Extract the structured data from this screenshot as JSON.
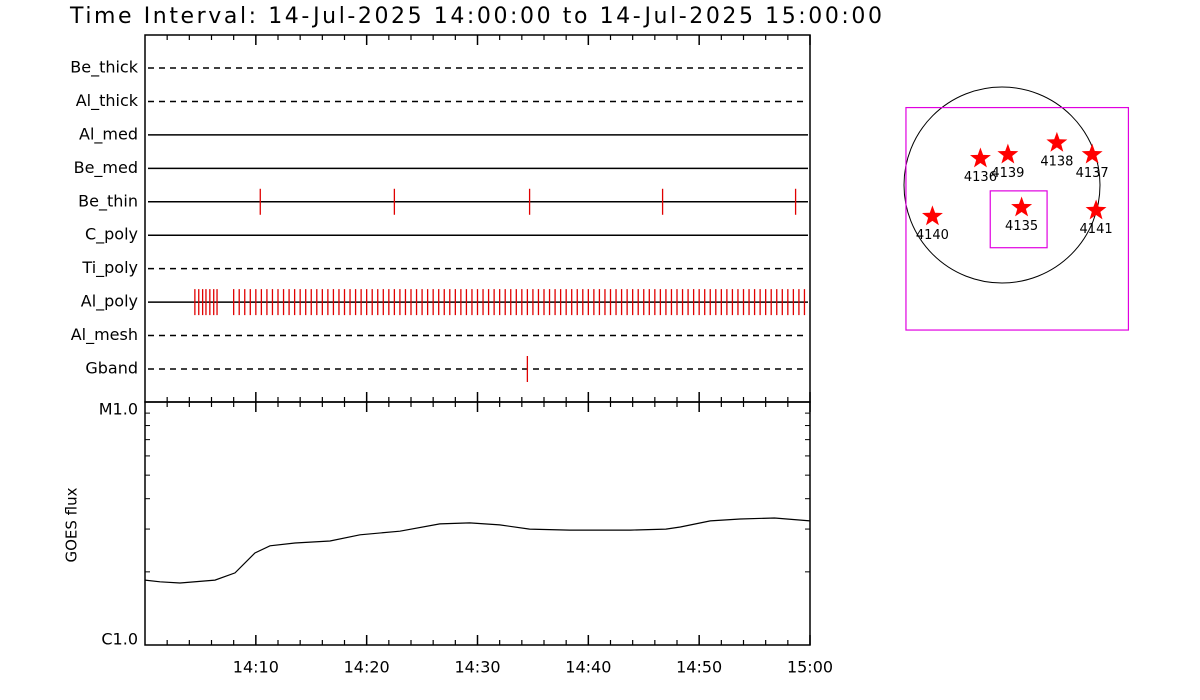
{
  "chart_data": [
    {
      "type": "timeline",
      "title": "Time Interval: 14-Jul-2025 14:00:00 to 14-Jul-2025 15:00:00",
      "categories": [
        "Be_thick",
        "Al_thick",
        "Al_med",
        "Be_med",
        "Be_thin",
        "C_poly",
        "Ti_poly",
        "Al_poly",
        "Al_mesh",
        "Gband"
      ],
      "styles": [
        "dashed",
        "dashed",
        "solid",
        "solid",
        "solid",
        "solid",
        "dashed",
        "solid",
        "dashed",
        "dashed"
      ],
      "color": "#e00000",
      "events": [
        [],
        [],
        [],
        [],
        [
          10.4,
          22.5,
          34.7,
          46.7,
          58.7
        ],
        [],
        [],
        [
          4.5,
          4.85,
          5.2,
          5.5,
          5.85,
          6.2,
          6.5,
          8,
          8.5,
          9,
          9.5,
          10,
          10.5,
          11,
          11.5,
          12,
          12.5,
          13,
          13.5,
          14,
          14.5,
          15,
          15.5,
          16,
          16.5,
          17,
          17.5,
          18,
          18.5,
          19,
          19.5,
          20,
          20.5,
          21,
          21.5,
          22,
          22.5,
          23,
          23.5,
          24,
          24.5,
          25,
          25.5,
          26,
          26.5,
          27,
          27.5,
          28,
          28.5,
          29,
          29.5,
          30,
          30.5,
          31,
          31.5,
          32,
          32.5,
          33,
          33.5,
          34,
          34.5,
          35,
          35.5,
          36,
          36.5,
          37,
          37.5,
          38,
          38.5,
          39,
          39.5,
          40,
          40.5,
          41,
          41.5,
          42,
          42.5,
          43,
          43.5,
          44,
          44.5,
          45,
          45.5,
          46,
          46.5,
          47,
          47.5,
          48,
          48.5,
          49,
          49.5,
          50,
          50.5,
          51,
          51.5,
          52,
          52.5,
          53,
          53.5,
          54,
          54.5,
          55,
          55.5,
          56,
          56.5,
          57,
          57.5,
          58,
          58.5,
          59,
          59.5
        ],
        [],
        [
          34.5
        ]
      ]
    },
    {
      "type": "line",
      "ylabel": "GOES flux",
      "log_y": true,
      "color": "#000000",
      "x": [
        0,
        1.35,
        3.16,
        6.32,
        8.12,
        9.92,
        11.28,
        13.53,
        16.69,
        19.4,
        23.0,
        26.6,
        29.3,
        32.0,
        34.7,
        38.3,
        41.1,
        43.8,
        47.0,
        48.3,
        51.0,
        53.7,
        56.8,
        60
      ],
      "values": [
        1.85e-06,
        1.82e-06,
        1.8e-06,
        1.85e-06,
        1.98e-06,
        2.39e-06,
        2.56e-06,
        2.63e-06,
        2.68e-06,
        2.84e-06,
        2.94e-06,
        3.15e-06,
        3.18e-06,
        3.12e-06,
        3e-06,
        2.97e-06,
        2.97e-06,
        2.97e-06,
        3e-06,
        3.06e-06,
        3.24e-06,
        3.3e-06,
        3.33e-06,
        3.24e-06
      ],
      "xlim": [
        0,
        60
      ],
      "xticks": [
        {
          "value": 10,
          "label": "14:10"
        },
        {
          "value": 20,
          "label": "14:20"
        },
        {
          "value": 30,
          "label": "14:30"
        },
        {
          "value": 40,
          "label": "14:40"
        },
        {
          "value": 50,
          "label": "14:50"
        },
        {
          "value": 60,
          "label": "15:00"
        }
      ],
      "minor_xticks": [
        2,
        4,
        6,
        8,
        12,
        14,
        16,
        18,
        22,
        24,
        26,
        28,
        32,
        34,
        36,
        38,
        42,
        44,
        46,
        48,
        52,
        54,
        56,
        58
      ],
      "ylim": [
        1e-06,
        1e-05
      ],
      "yticks": [
        {
          "value": 1e-06,
          "label": "C1.0"
        },
        {
          "value": 1e-05,
          "label": "M1.0"
        }
      ],
      "minor_yticks": [
        2e-06,
        3e-06,
        4e-06,
        5e-06,
        6e-06,
        7e-06,
        8e-06,
        9e-06
      ]
    },
    {
      "type": "map",
      "color": "#ff0000",
      "box_color": "#e000e0",
      "labels": [
        "4136",
        "4139",
        "4138",
        "4137",
        "4135",
        "4140",
        "4141"
      ],
      "x": [
        -0.22,
        0.06,
        0.56,
        0.92,
        0.2,
        -0.71,
        0.96
      ],
      "y": [
        0.27,
        0.31,
        0.43,
        0.31,
        -0.23,
        -0.32,
        -0.26
      ],
      "boxes": [
        [
          -0.98,
          0.79,
          1.29,
          -1.48
        ],
        [
          -0.12,
          -0.06,
          0.46,
          -0.64
        ]
      ]
    }
  ]
}
